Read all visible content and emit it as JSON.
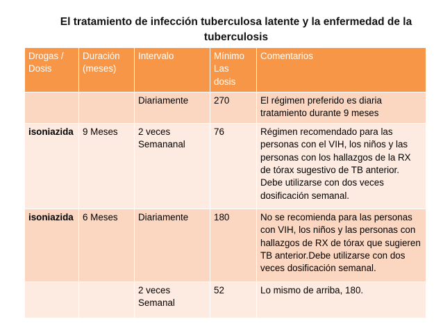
{
  "title": "El tratamiento de infección tuberculosa latente y la enfermedad de la tuberculosis",
  "header": {
    "drogas": "Drogas / Dosis",
    "duracion": "Duración (meses)",
    "intervalo": "Intervalo",
    "minimo": "Mínimo Las dosis",
    "comentarios": "Comentarios"
  },
  "rows": [
    {
      "drogas": "",
      "duracion": "",
      "intervalo": "Diariamente",
      "minimo": "270",
      "comentarios": "El régimen preferido es diaria tratamiento durante 9 meses"
    },
    {
      "drogas": "isoniazida",
      "duracion": "9 Meses",
      "intervalo": " 2 veces Semananal",
      "minimo": "76",
      "comentarios": "Régimen recomendado para las personas con el VIH, los niños y las personas con los hallazgos de la RX de tórax sugestivo de TB anterior. Debe utilizarse con dos veces dosificación semanal."
    },
    {
      "drogas": "isoniazida",
      "duracion": "6  Meses",
      "intervalo": "Diariamente",
      "minimo": "180",
      "comentarios": "No se recomienda para las personas con VIH, los niños y las personas con hallazgos de RX de tórax que sugieren  TB anterior.Debe utilizarse con dos veces dosificación semanal."
    },
    {
      "drogas": "",
      "duracion": "",
      "intervalo": "2 veces Semanal",
      "minimo": "52",
      "comentarios": "Lo mismo de arriba, 180."
    }
  ],
  "colors": {
    "header_bg": "#f79646",
    "row_odd_bg": "#fbd6c0",
    "row_even_bg": "#fdeae0"
  }
}
